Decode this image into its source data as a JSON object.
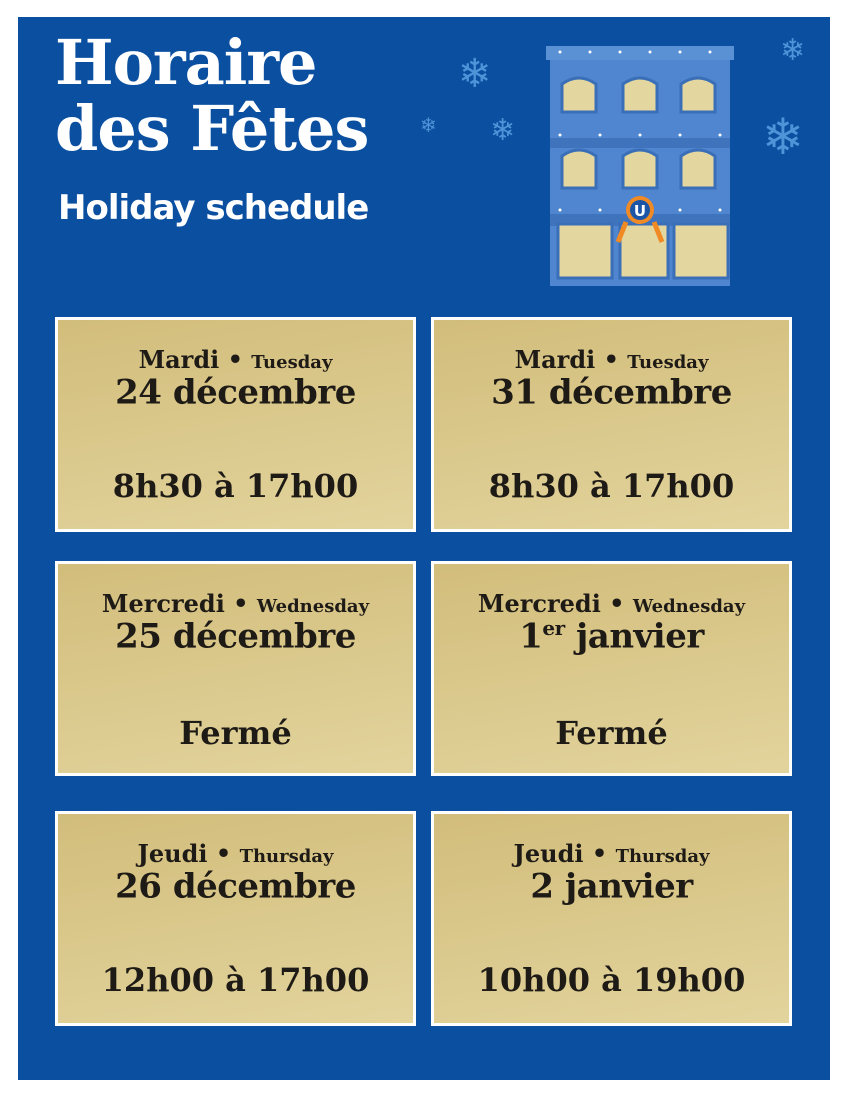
{
  "header": {
    "title_line1": "Horaire",
    "title_line2": "des Fêtes",
    "subtitle": "Holiday schedule"
  },
  "colors": {
    "background": "#0b4fa0",
    "card": "#d8c88a",
    "text": "#1e1a16",
    "building": "#4f86cf"
  },
  "icons": [
    "building-illustration",
    "snowflake-icon",
    "store-logo"
  ],
  "logo_text": "U",
  "cards": [
    {
      "day_fr": "Mardi",
      "day_en": "Tuesday",
      "date_num": "24",
      "date_sup": "",
      "date_month": "décembre",
      "hours": "8h30 à 17h00"
    },
    {
      "day_fr": "Mardi",
      "day_en": "Tuesday",
      "date_num": "31",
      "date_sup": "",
      "date_month": "décembre",
      "hours": "8h30 à 17h00"
    },
    {
      "day_fr": "Mercredi",
      "day_en": "Wednesday",
      "date_num": "25",
      "date_sup": "",
      "date_month": "décembre",
      "hours": "Fermé"
    },
    {
      "day_fr": "Mercredi",
      "day_en": "Wednesday",
      "date_num": "1",
      "date_sup": "er",
      "date_month": "janvier",
      "hours": "Fermé"
    },
    {
      "day_fr": "Jeudi",
      "day_en": "Thursday",
      "date_num": "26",
      "date_sup": "",
      "date_month": "décembre",
      "hours": "12h00 à 17h00"
    },
    {
      "day_fr": "Jeudi",
      "day_en": "Thursday",
      "date_num": "2",
      "date_sup": "",
      "date_month": "janvier",
      "hours": "10h00 à 19h00"
    }
  ]
}
